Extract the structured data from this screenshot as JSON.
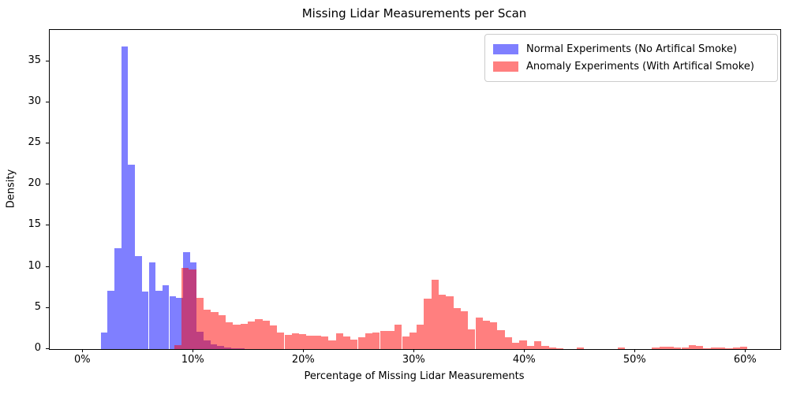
{
  "figure": {
    "title": "Missing Lidar Measurements per Scan",
    "x_label": "Percentage of Missing Lidar Measurements",
    "y_label": "Density"
  },
  "legend": {
    "items": [
      {
        "label": "Normal Experiments (No Artifical Smoke)",
        "color": "rgba(0,0,255,0.5)"
      },
      {
        "label": "Anomaly Experiments (With Artifical Smoke)",
        "color": "rgba(255,0,0,0.5)"
      }
    ]
  },
  "chart_data": {
    "type": "bar",
    "subtype": "overlaid-density-histograms",
    "title": "Missing Lidar Measurements per Scan",
    "xlabel": "Percentage of Missing Lidar Measurements",
    "ylabel": "Density",
    "grid": false,
    "legend_position": "upper right",
    "x_axis": {
      "tick_values": [
        0,
        10,
        20,
        30,
        40,
        50,
        60
      ],
      "tick_labels": [
        "0%",
        "10%",
        "20%",
        "30%",
        "40%",
        "50%",
        "60%"
      ],
      "range_pct": [
        -3.0,
        63.1
      ]
    },
    "y_axis": {
      "tick_values": [
        0,
        5,
        10,
        15,
        20,
        25,
        30,
        35
      ],
      "tick_labels": [
        "0",
        "5",
        "10",
        "15",
        "20",
        "25",
        "30",
        "35"
      ],
      "range": [
        0,
        38.8
      ]
    },
    "series": [
      {
        "name": "Normal Experiments (No Artifical Smoke)",
        "color": "rgba(0,0,255,0.5)",
        "bin_width_pct": 0.62,
        "bars_start_pct_and_density": [
          [
            1.6,
            2.0
          ],
          [
            2.22,
            7.1
          ],
          [
            2.84,
            12.3
          ],
          [
            3.46,
            36.8
          ],
          [
            4.08,
            22.4
          ],
          [
            4.7,
            11.3
          ],
          [
            5.32,
            7.0
          ],
          [
            5.94,
            10.5
          ],
          [
            6.56,
            7.1
          ],
          [
            7.18,
            7.8
          ],
          [
            7.8,
            6.4
          ],
          [
            8.42,
            6.2
          ],
          [
            9.04,
            11.8
          ],
          [
            9.66,
            10.5
          ],
          [
            10.28,
            2.1
          ],
          [
            10.9,
            1.1
          ],
          [
            11.52,
            0.6
          ],
          [
            12.14,
            0.35
          ],
          [
            12.76,
            0.2
          ],
          [
            13.38,
            0.12
          ],
          [
            14.0,
            0.06
          ]
        ]
      },
      {
        "name": "Anomaly Experiments (With Artifical Smoke)",
        "color": "rgba(255,0,0,0.5)",
        "bin_width_pct": 0.665,
        "bars_start_pct_and_density": [
          [
            8.25,
            0.5
          ],
          [
            8.92,
            9.9
          ],
          [
            9.58,
            9.7
          ],
          [
            10.25,
            6.2
          ],
          [
            10.91,
            4.8
          ],
          [
            11.58,
            4.5
          ],
          [
            12.24,
            4.1
          ],
          [
            12.91,
            3.3
          ],
          [
            13.57,
            3.0
          ],
          [
            14.24,
            3.1
          ],
          [
            14.9,
            3.4
          ],
          [
            15.57,
            3.6
          ],
          [
            16.23,
            3.5
          ],
          [
            16.9,
            2.9
          ],
          [
            17.56,
            2.0
          ],
          [
            18.23,
            1.75
          ],
          [
            18.89,
            1.9
          ],
          [
            19.56,
            1.85
          ],
          [
            20.22,
            1.6
          ],
          [
            20.89,
            1.65
          ],
          [
            21.55,
            1.5
          ],
          [
            22.22,
            1.1
          ],
          [
            22.88,
            1.9
          ],
          [
            23.55,
            1.5
          ],
          [
            24.21,
            1.2
          ],
          [
            24.88,
            1.4
          ],
          [
            25.54,
            1.9
          ],
          [
            26.21,
            2.0
          ],
          [
            26.87,
            2.25
          ],
          [
            27.54,
            2.25
          ],
          [
            28.2,
            3.0
          ],
          [
            28.87,
            1.5
          ],
          [
            29.53,
            2.0
          ],
          [
            30.2,
            3.0
          ],
          [
            30.86,
            6.1
          ],
          [
            31.53,
            8.4
          ],
          [
            32.19,
            6.6
          ],
          [
            32.86,
            6.4
          ],
          [
            33.52,
            5.0
          ],
          [
            34.19,
            4.6
          ],
          [
            34.85,
            2.4
          ],
          [
            35.52,
            3.8
          ],
          [
            36.18,
            3.5
          ],
          [
            36.85,
            3.3
          ],
          [
            37.51,
            2.3
          ],
          [
            38.18,
            1.45
          ],
          [
            38.84,
            0.8
          ],
          [
            39.51,
            1.1
          ],
          [
            40.17,
            0.4
          ],
          [
            40.84,
            1.0
          ],
          [
            41.5,
            0.35
          ],
          [
            42.17,
            0.2
          ],
          [
            42.83,
            0.1
          ],
          [
            44.7,
            0.2
          ],
          [
            48.4,
            0.16
          ],
          [
            51.5,
            0.2
          ],
          [
            52.16,
            0.25
          ],
          [
            52.83,
            0.25
          ],
          [
            53.49,
            0.2
          ],
          [
            54.16,
            0.15
          ],
          [
            54.82,
            0.45
          ],
          [
            55.49,
            0.35
          ],
          [
            56.15,
            0.1
          ],
          [
            56.82,
            0.2
          ],
          [
            57.48,
            0.2
          ],
          [
            58.15,
            0.1
          ],
          [
            58.81,
            0.15
          ],
          [
            59.48,
            0.3
          ]
        ]
      }
    ]
  }
}
